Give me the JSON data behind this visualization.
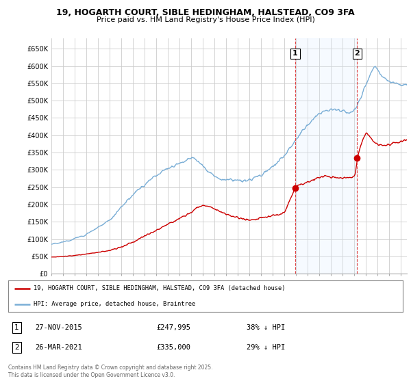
{
  "title": "19, HOGARTH COURT, SIBLE HEDINGHAM, HALSTEAD, CO9 3FA",
  "subtitle": "Price paid vs. HM Land Registry's House Price Index (HPI)",
  "ylabel_ticks": [
    "£0",
    "£50K",
    "£100K",
    "£150K",
    "£200K",
    "£250K",
    "£300K",
    "£350K",
    "£400K",
    "£450K",
    "£500K",
    "£550K",
    "£600K",
    "£650K"
  ],
  "ytick_values": [
    0,
    50000,
    100000,
    150000,
    200000,
    250000,
    300000,
    350000,
    400000,
    450000,
    500000,
    550000,
    600000,
    650000
  ],
  "ylim": [
    0,
    680000
  ],
  "xlim_start": 1995.0,
  "xlim_end": 2025.5,
  "hpi_color": "#7aaed6",
  "price_color": "#cc0000",
  "vline_color": "#dd4444",
  "shade_color": "#ddeeff",
  "background_color": "#ffffff",
  "grid_color": "#cccccc",
  "sale1_x": 2015.92,
  "sale1_y": 247995,
  "sale1_label": "1",
  "sale1_date": "27-NOV-2015",
  "sale1_price": "£247,995",
  "sale1_note": "38% ↓ HPI",
  "sale2_x": 2021.23,
  "sale2_y": 335000,
  "sale2_label": "2",
  "sale2_date": "26-MAR-2021",
  "sale2_price": "£335,000",
  "sale2_note": "29% ↓ HPI",
  "legend_line1": "19, HOGARTH COURT, SIBLE HEDINGHAM, HALSTEAD, CO9 3FA (detached house)",
  "legend_line2": "HPI: Average price, detached house, Braintree",
  "footer": "Contains HM Land Registry data © Crown copyright and database right 2025.\nThis data is licensed under the Open Government Licence v3.0."
}
